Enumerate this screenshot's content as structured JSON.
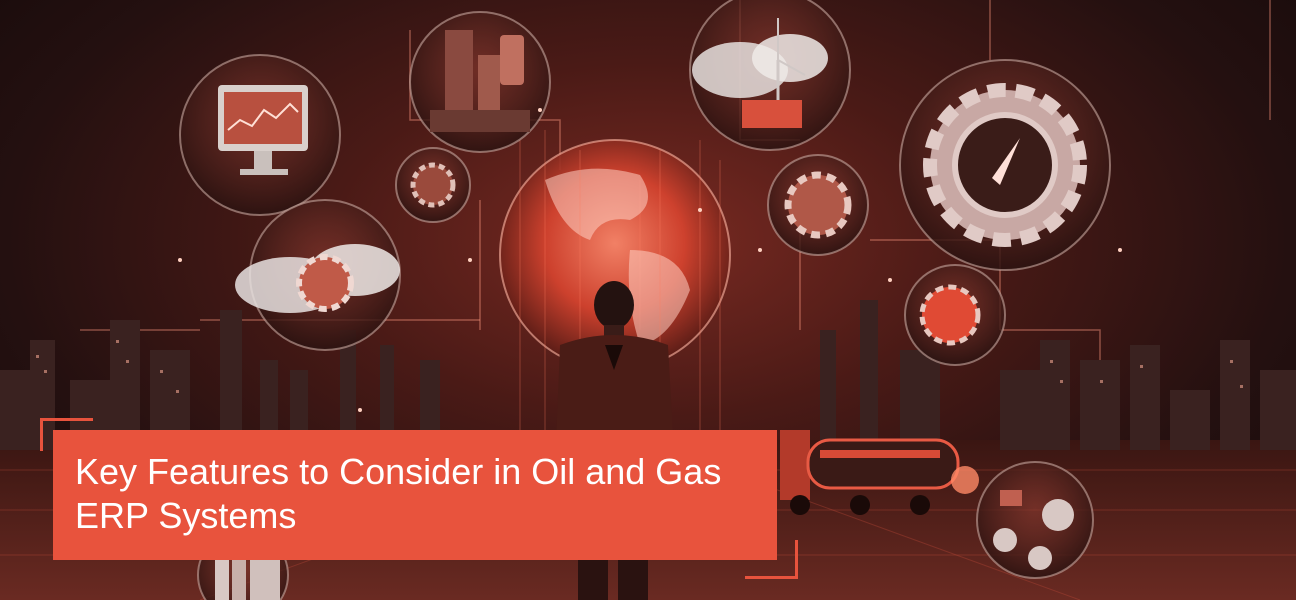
{
  "banner": {
    "title": "Key Features to Consider in Oil and Gas ERP Systems"
  },
  "colors": {
    "accent": "#e8533d",
    "background_dark": "#1a0c0b",
    "glow": "#ff6a4d"
  },
  "scene_icons": [
    "monitor-icon",
    "oil-rig-icon",
    "wind-turbine-cloud-icon",
    "gear-compass-icon",
    "globe-icon",
    "cloud-gear-icon",
    "machinery-gear-icon",
    "energy-globe-icon",
    "tanker-truck-icon",
    "person-icon",
    "refinery-skyline-icon"
  ]
}
